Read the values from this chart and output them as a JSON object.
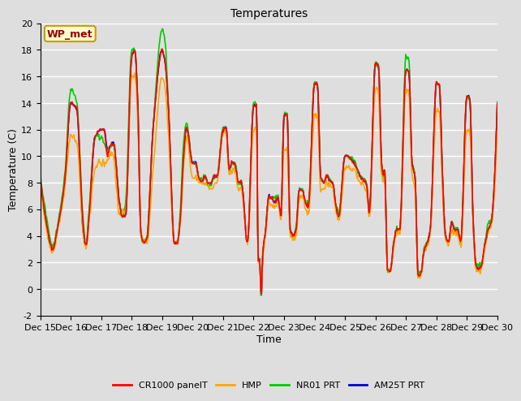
{
  "title": "Temperatures",
  "xlabel": "Time",
  "ylabel": "Temperature (C)",
  "ylim": [
    -2,
    20
  ],
  "yticks": [
    -2,
    0,
    2,
    4,
    6,
    8,
    10,
    12,
    14,
    16,
    18,
    20
  ],
  "xtick_labels": [
    "Dec 15",
    "Dec 16",
    "Dec 17",
    "Dec 18",
    "Dec 19",
    "Dec 20",
    "Dec 21",
    "Dec 22",
    "Dec 23",
    "Dec 24",
    "Dec 25",
    "Dec 26",
    "Dec 27",
    "Dec 28",
    "Dec 29",
    "Dec 30"
  ],
  "legend_labels": [
    "CR1000 panelT",
    "HMP",
    "NR01 PRT",
    "AM25T PRT"
  ],
  "colors": [
    "#ff0000",
    "#ffa500",
    "#00cc00",
    "#0000cc"
  ],
  "linewidths": [
    1.2,
    1.2,
    1.2,
    1.2
  ],
  "annotation_text": "WP_met",
  "annotation_color": "#990000",
  "annotation_bbox_facecolor": "#ffffcc",
  "annotation_bbox_edgecolor": "#cc9900",
  "plot_background_color": "#dedede",
  "fig_background_color": "#dedede",
  "title_fontsize": 10,
  "axis_label_fontsize": 9,
  "tick_fontsize": 8,
  "legend_fontsize": 8,
  "num_days": 15,
  "n_points": 720
}
